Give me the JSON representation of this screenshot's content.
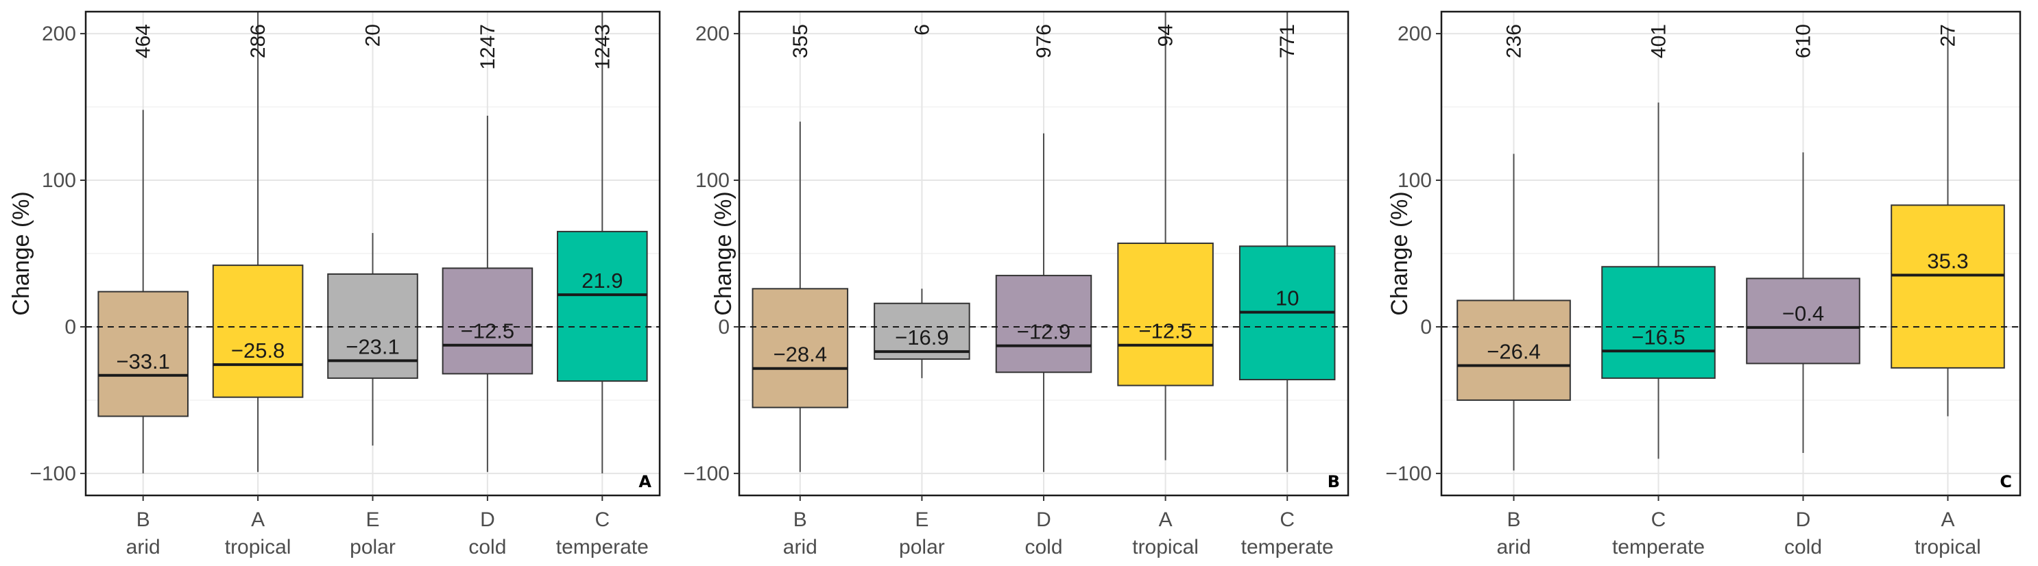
{
  "chart_data": [
    {
      "type": "box",
      "panel_label": "A",
      "ylabel": "Change (%)",
      "ylim": [
        -115,
        215
      ],
      "yticks": [
        -100,
        0,
        100,
        200
      ],
      "ytick_labels": [
        "−100",
        "0",
        "100",
        "200"
      ],
      "reference_line": 0,
      "boxes": [
        {
          "code": "B",
          "name": "arid",
          "n": "464",
          "color": "#d2b48c",
          "whisker_low": -100,
          "q1": -61,
          "median": -33.1,
          "q3": 24,
          "whisker_high": 148,
          "median_label": "−33.1"
        },
        {
          "code": "A",
          "name": "tropical",
          "n": "286",
          "color": "#ffd432",
          "whisker_low": -99,
          "q1": -48,
          "median": -25.8,
          "q3": 42,
          "whisker_high": 215,
          "median_label": "−25.8"
        },
        {
          "code": "E",
          "name": "polar",
          "n": "20",
          "color": "#b3b3b3",
          "whisker_low": -81,
          "q1": -35,
          "median": -23.1,
          "q3": 36,
          "whisker_high": 64,
          "median_label": "−23.1"
        },
        {
          "code": "D",
          "name": "cold",
          "n": "1247",
          "color": "#a898ad",
          "whisker_low": -99,
          "q1": -32,
          "median": -12.5,
          "q3": 40,
          "whisker_high": 144,
          "median_label": "−12.5"
        },
        {
          "code": "C",
          "name": "temperate",
          "n": "1243",
          "color": "#00c19f",
          "whisker_low": -100,
          "q1": -37,
          "median": 21.9,
          "q3": 65,
          "whisker_high": 215,
          "median_label": "21.9"
        }
      ]
    },
    {
      "type": "box",
      "panel_label": "B",
      "ylabel": "Change (%)",
      "ylim": [
        -115,
        215
      ],
      "yticks": [
        -100,
        0,
        100,
        200
      ],
      "ytick_labels": [
        "−100",
        "0",
        "100",
        "200"
      ],
      "reference_line": 0,
      "boxes": [
        {
          "code": "B",
          "name": "arid",
          "n": "355",
          "color": "#d2b48c",
          "whisker_low": -99,
          "q1": -55,
          "median": -28.4,
          "q3": 26,
          "whisker_high": 140,
          "median_label": "−28.4"
        },
        {
          "code": "E",
          "name": "polar",
          "n": "6",
          "color": "#b3b3b3",
          "whisker_low": -35,
          "q1": -22,
          "median": -16.9,
          "q3": 16,
          "whisker_high": 26,
          "median_label": "−16.9"
        },
        {
          "code": "D",
          "name": "cold",
          "n": "976",
          "color": "#a898ad",
          "whisker_low": -99,
          "q1": -31,
          "median": -12.9,
          "q3": 35,
          "whisker_high": 132,
          "median_label": "−12.9"
        },
        {
          "code": "A",
          "name": "tropical",
          "n": "94",
          "color": "#ffd432",
          "whisker_low": -91,
          "q1": -40,
          "median": -12.5,
          "q3": 57,
          "whisker_high": 215,
          "median_label": "−12.5"
        },
        {
          "code": "C",
          "name": "temperate",
          "n": "771",
          "color": "#00c19f",
          "whisker_low": -99,
          "q1": -36,
          "median": 10,
          "q3": 55,
          "whisker_high": 215,
          "median_label": "10"
        }
      ]
    },
    {
      "type": "box",
      "panel_label": "C",
      "ylabel": "Change (%)",
      "ylim": [
        -115,
        215
      ],
      "yticks": [
        -100,
        0,
        100,
        200
      ],
      "ytick_labels": [
        "−100",
        "0",
        "100",
        "200"
      ],
      "reference_line": 0,
      "boxes": [
        {
          "code": "B",
          "name": "arid",
          "n": "236",
          "color": "#d2b48c",
          "whisker_low": -98,
          "q1": -50,
          "median": -26.4,
          "q3": 18,
          "whisker_high": 118,
          "median_label": "−26.4"
        },
        {
          "code": "C",
          "name": "temperate",
          "n": "401",
          "color": "#00c19f",
          "whisker_low": -90,
          "q1": -35,
          "median": -16.5,
          "q3": 41,
          "whisker_high": 153,
          "median_label": "−16.5"
        },
        {
          "code": "D",
          "name": "cold",
          "n": "610",
          "color": "#a898ad",
          "whisker_low": -86,
          "q1": -25,
          "median": -0.4,
          "q3": 33,
          "whisker_high": 119,
          "median_label": "−0.4"
        },
        {
          "code": "A",
          "name": "tropical",
          "n": "27",
          "color": "#ffd432",
          "whisker_low": -61,
          "q1": -28,
          "median": 35.3,
          "q3": 83,
          "whisker_high": 204,
          "median_label": "35.3"
        }
      ]
    }
  ]
}
